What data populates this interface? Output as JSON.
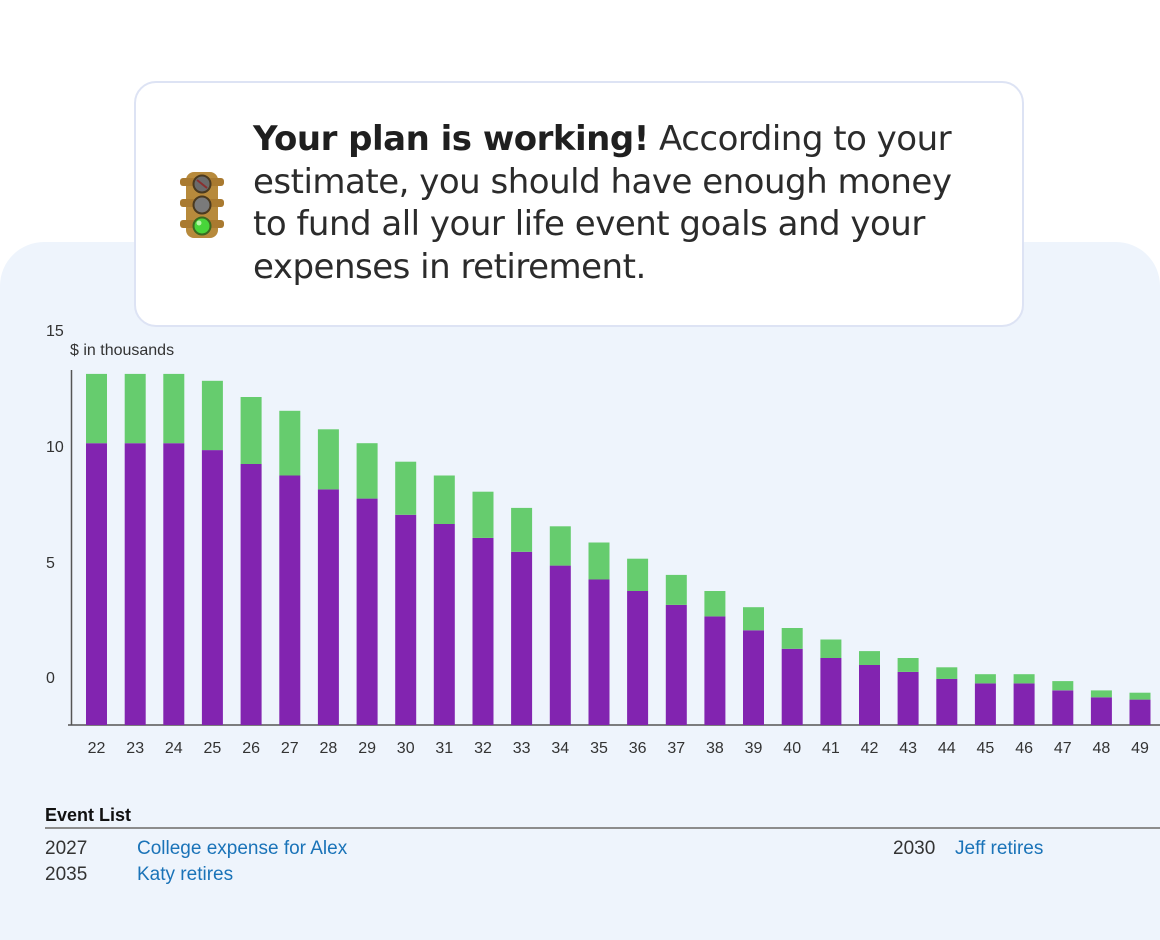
{
  "message": {
    "bold": "Your plan is working!",
    "rest": " According to your estimate, you should have enough money to fund all your life event goals and your expenses in retirement."
  },
  "icons": {
    "status": "traffic-light-icon"
  },
  "colors": {
    "primary": "#8224b0",
    "secondary": "#66cc6e",
    "link": "#1a73b8"
  },
  "chart_data": {
    "type": "bar",
    "stacked": true,
    "ylabel": "$ in thousands",
    "yticks": [
      "15",
      "10",
      "5",
      "0"
    ],
    "categories": [
      "22",
      "23",
      "24",
      "25",
      "26",
      "27",
      "28",
      "29",
      "30",
      "31",
      "32",
      "33",
      "34",
      "35",
      "36",
      "37",
      "38",
      "39",
      "40",
      "41",
      "42",
      "43",
      "44",
      "45",
      "46",
      "47",
      "48",
      "49"
    ],
    "series": [
      {
        "color": "#8224b0",
        "values": [
          12.2,
          12.2,
          12.2,
          11.9,
          11.3,
          10.8,
          10.2,
          9.8,
          9.1,
          8.7,
          8.1,
          7.5,
          6.9,
          6.3,
          5.8,
          5.2,
          4.7,
          4.1,
          3.3,
          2.9,
          2.6,
          2.3,
          2.0,
          1.8,
          1.8,
          1.5,
          1.2,
          1.1
        ]
      },
      {
        "color": "#66cc6e",
        "values": [
          3.0,
          3.0,
          3.0,
          3.0,
          2.9,
          2.8,
          2.6,
          2.4,
          2.3,
          2.1,
          2.0,
          1.9,
          1.7,
          1.6,
          1.4,
          1.3,
          1.1,
          1.0,
          0.9,
          0.8,
          0.6,
          0.6,
          0.5,
          0.4,
          0.4,
          0.4,
          0.3,
          0.3
        ]
      }
    ],
    "grid": false,
    "legend": "none"
  },
  "events": {
    "title": "Event List",
    "items": [
      {
        "year": "2027",
        "name": "College expense for Alex"
      },
      {
        "year": "2030",
        "name": "Jeff retires"
      },
      {
        "year": "2035",
        "name": "Katy retires"
      }
    ]
  }
}
